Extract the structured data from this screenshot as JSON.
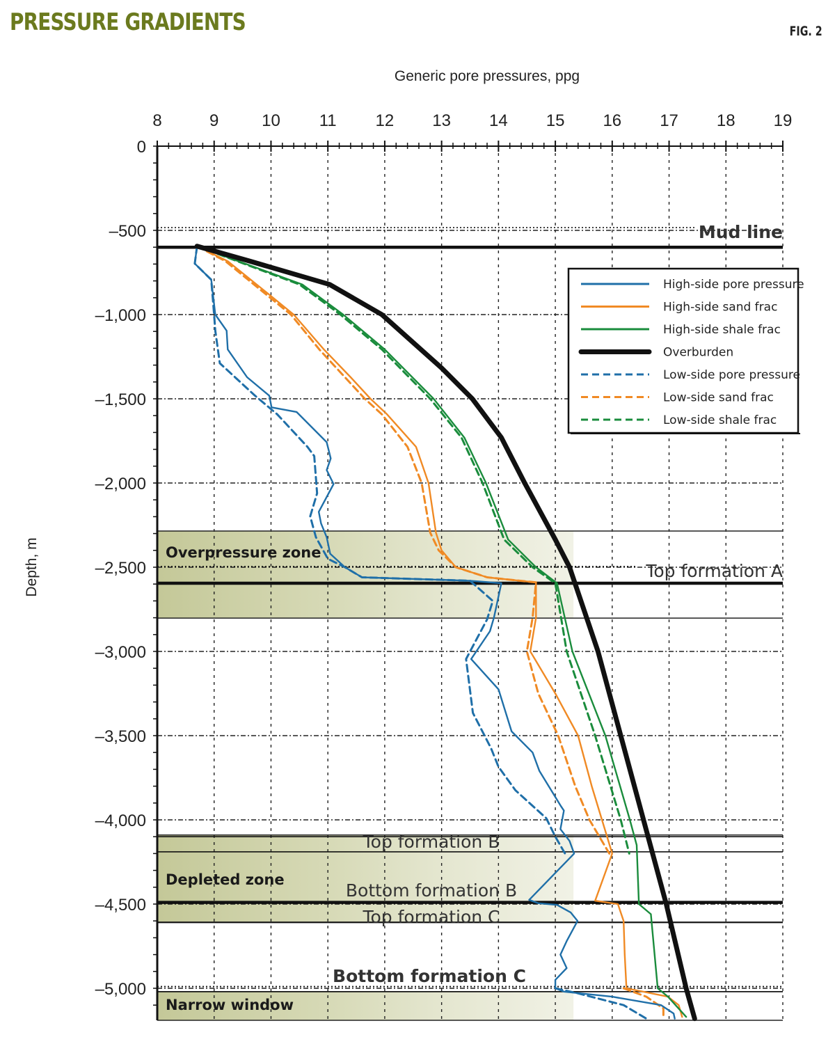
{
  "title": "PRESSURE GRADIENTS",
  "fig_label": "FIG. 2",
  "chart_data": {
    "type": "line",
    "title": "PRESSURE GRADIENTS",
    "xlabel": "Generic pore pressures, ppg",
    "ylabel": "Depth, m",
    "xlim": [
      8,
      19
    ],
    "ylim": [
      -5190,
      0
    ],
    "x_axis_position": "top",
    "grid": true,
    "legend_position": "top-right",
    "xticks": [
      "8",
      "9",
      "10",
      "11",
      "12",
      "13",
      "14",
      "15",
      "16",
      "17",
      "18",
      "19"
    ],
    "yticks": [
      {
        "value": 0,
        "label": "0"
      },
      {
        "value": -500,
        "label": "–500"
      },
      {
        "value": -1000,
        "label": "–1,000"
      },
      {
        "value": -1500,
        "label": "–1,500"
      },
      {
        "value": -2000,
        "label": "–2,000"
      },
      {
        "value": -2500,
        "label": "–2,500"
      },
      {
        "value": -3000,
        "label": "–3,000"
      },
      {
        "value": -3500,
        "label": "–3,500"
      },
      {
        "value": -4000,
        "label": "–4,000"
      },
      {
        "value": -4500,
        "label": "–4,500"
      },
      {
        "value": -5000,
        "label": "–5,000"
      }
    ],
    "series": [
      {
        "name": "High-side pore pressure",
        "color": "#1f6fa8",
        "style": "solid",
        "points": [
          [
            8.7,
            -594
          ],
          [
            8.66,
            -697
          ],
          [
            8.95,
            -793
          ],
          [
            9.02,
            -1000
          ],
          [
            9.22,
            -1096
          ],
          [
            9.24,
            -1207
          ],
          [
            9.58,
            -1372
          ],
          [
            9.97,
            -1482
          ],
          [
            10.01,
            -1551
          ],
          [
            10.45,
            -1578
          ],
          [
            10.98,
            -1758
          ],
          [
            11.05,
            -1854
          ],
          [
            10.98,
            -1923
          ],
          [
            11.1,
            -2006
          ],
          [
            10.84,
            -2171
          ],
          [
            10.88,
            -2240
          ],
          [
            10.98,
            -2322
          ],
          [
            11.04,
            -2420
          ],
          [
            11.3,
            -2500
          ],
          [
            11.6,
            -2560
          ],
          [
            13.5,
            -2580
          ],
          [
            14.05,
            -2595
          ],
          [
            13.92,
            -2800
          ],
          [
            13.85,
            -2880
          ],
          [
            13.52,
            -3045
          ],
          [
            14.0,
            -3225
          ],
          [
            14.23,
            -3475
          ],
          [
            14.6,
            -3600
          ],
          [
            14.72,
            -3710
          ],
          [
            15.1,
            -3920
          ],
          [
            15.15,
            -3945
          ],
          [
            15.09,
            -4055
          ],
          [
            15.25,
            -4125
          ],
          [
            15.33,
            -4200
          ],
          [
            14.9,
            -4350
          ],
          [
            14.54,
            -4475
          ],
          [
            14.7,
            -4495
          ],
          [
            15.03,
            -4505
          ],
          [
            15.27,
            -4550
          ],
          [
            15.39,
            -4600
          ],
          [
            15.2,
            -4720
          ],
          [
            15.09,
            -4800
          ],
          [
            15.2,
            -4880
          ],
          [
            15.0,
            -4950
          ],
          [
            15.0,
            -5000
          ],
          [
            15.15,
            -5020
          ],
          [
            16.0,
            -5050
          ],
          [
            16.86,
            -5100
          ],
          [
            17.08,
            -5150
          ],
          [
            17.1,
            -5180
          ]
        ]
      },
      {
        "name": "High-side sand frac",
        "color": "#f08a24",
        "style": "solid",
        "points": [
          [
            8.7,
            -594
          ],
          [
            9.24,
            -683
          ],
          [
            10.0,
            -890
          ],
          [
            10.4,
            -1000
          ],
          [
            10.93,
            -1207
          ],
          [
            11.4,
            -1372
          ],
          [
            11.75,
            -1500
          ],
          [
            12.04,
            -1592
          ],
          [
            12.55,
            -1785
          ],
          [
            12.77,
            -2000
          ],
          [
            12.9,
            -2295
          ],
          [
            13.0,
            -2400
          ],
          [
            13.25,
            -2500
          ],
          [
            13.8,
            -2560
          ],
          [
            14.66,
            -2590
          ],
          [
            14.66,
            -2800
          ],
          [
            14.56,
            -3000
          ],
          [
            15.0,
            -3250
          ],
          [
            15.4,
            -3500
          ],
          [
            15.64,
            -3800
          ],
          [
            15.82,
            -4000
          ],
          [
            16.0,
            -4200
          ],
          [
            15.7,
            -4480
          ],
          [
            16.1,
            -4500
          ],
          [
            16.2,
            -4600
          ],
          [
            16.22,
            -4800
          ],
          [
            16.25,
            -5000
          ],
          [
            16.98,
            -5050
          ],
          [
            17.17,
            -5100
          ],
          [
            17.23,
            -5170
          ]
        ]
      },
      {
        "name": "High-side shale frac",
        "color": "#1a8c3c",
        "style": "solid",
        "points": [
          [
            8.7,
            -594
          ],
          [
            10.55,
            -821
          ],
          [
            11.27,
            -1000
          ],
          [
            12.0,
            -1207
          ],
          [
            12.86,
            -1500
          ],
          [
            13.4,
            -1730
          ],
          [
            13.78,
            -2000
          ],
          [
            14.17,
            -2336
          ],
          [
            14.66,
            -2500
          ],
          [
            15.03,
            -2595
          ],
          [
            15.3,
            -3000
          ],
          [
            15.88,
            -3500
          ],
          [
            16.31,
            -4000
          ],
          [
            16.43,
            -4150
          ],
          [
            16.47,
            -4500
          ],
          [
            16.68,
            -4560
          ],
          [
            16.8,
            -5000
          ],
          [
            16.98,
            -5050
          ],
          [
            17.3,
            -5170
          ]
        ]
      },
      {
        "name": "Overburden",
        "color": "#111111",
        "style": "thick",
        "points": [
          [
            8.7,
            -594
          ],
          [
            9.63,
            -683
          ],
          [
            11.03,
            -821
          ],
          [
            11.95,
            -1000
          ],
          [
            13.0,
            -1317
          ],
          [
            13.54,
            -1500
          ],
          [
            14.05,
            -1730
          ],
          [
            14.46,
            -2000
          ],
          [
            15.0,
            -2336
          ],
          [
            15.25,
            -2500
          ],
          [
            15.35,
            -2600
          ],
          [
            15.75,
            -3000
          ],
          [
            16.15,
            -3500
          ],
          [
            16.55,
            -4000
          ],
          [
            16.95,
            -4500
          ],
          [
            17.3,
            -5000
          ],
          [
            17.45,
            -5180
          ]
        ]
      },
      {
        "name": "Low-side pore pressure",
        "color": "#1f6fa8",
        "style": "dashed",
        "points": [
          [
            8.7,
            -594
          ],
          [
            8.66,
            -697
          ],
          [
            8.95,
            -793
          ],
          [
            9.0,
            -1000
          ],
          [
            9.02,
            -1096
          ],
          [
            9.1,
            -1289
          ],
          [
            9.72,
            -1482
          ],
          [
            10.11,
            -1592
          ],
          [
            10.64,
            -1785
          ],
          [
            10.76,
            -1840
          ],
          [
            10.81,
            -2061
          ],
          [
            10.69,
            -2198
          ],
          [
            10.79,
            -2322
          ],
          [
            11.0,
            -2450
          ],
          [
            11.3,
            -2500
          ],
          [
            11.6,
            -2560
          ],
          [
            13.5,
            -2580
          ],
          [
            13.9,
            -2700
          ],
          [
            13.8,
            -2810
          ],
          [
            13.43,
            -3045
          ],
          [
            13.55,
            -3365
          ],
          [
            13.87,
            -3575
          ],
          [
            14.0,
            -3685
          ],
          [
            14.3,
            -3825
          ],
          [
            14.84,
            -3990
          ],
          [
            15.0,
            -4100
          ],
          [
            15.17,
            -4200
          ]
        ]
      },
      {
        "name": "Low-side sand frac",
        "color": "#f08a24",
        "style": "dashed",
        "points": [
          [
            8.7,
            -594
          ],
          [
            9.2,
            -683
          ],
          [
            9.95,
            -890
          ],
          [
            10.35,
            -1000
          ],
          [
            10.85,
            -1207
          ],
          [
            11.3,
            -1372
          ],
          [
            11.65,
            -1500
          ],
          [
            11.95,
            -1592
          ],
          [
            12.4,
            -1785
          ],
          [
            12.65,
            -2000
          ],
          [
            12.8,
            -2295
          ],
          [
            12.95,
            -2400
          ],
          [
            13.25,
            -2500
          ],
          [
            13.8,
            -2560
          ],
          [
            14.66,
            -2590
          ],
          [
            14.6,
            -2800
          ],
          [
            14.5,
            -3000
          ],
          [
            14.7,
            -3250
          ],
          [
            15.05,
            -3500
          ],
          [
            15.35,
            -3800
          ],
          [
            15.6,
            -4000
          ],
          [
            15.95,
            -4200
          ]
        ]
      },
      {
        "name": "Low-side shale frac",
        "color": "#1a8c3c",
        "style": "dashed",
        "points": [
          [
            8.7,
            -594
          ],
          [
            10.5,
            -821
          ],
          [
            11.22,
            -1000
          ],
          [
            11.95,
            -1207
          ],
          [
            12.8,
            -1500
          ],
          [
            13.35,
            -1730
          ],
          [
            13.72,
            -2000
          ],
          [
            14.1,
            -2336
          ],
          [
            14.6,
            -2500
          ],
          [
            15.0,
            -2595
          ],
          [
            15.2,
            -3000
          ],
          [
            15.7,
            -3500
          ],
          [
            16.15,
            -4000
          ],
          [
            16.3,
            -4200
          ]
        ]
      },
      {
        "name": "Low-side pore pressure (bottom)",
        "legend": false,
        "color": "#1f6fa8",
        "style": "dashed",
        "points": [
          [
            15.0,
            -5000
          ],
          [
            15.4,
            -5030
          ],
          [
            16.2,
            -5100
          ],
          [
            16.6,
            -5180
          ]
        ]
      },
      {
        "name": "Low-side sand frac (bottom)",
        "legend": false,
        "color": "#f08a24",
        "style": "dashed",
        "points": [
          [
            16.2,
            -5000
          ],
          [
            16.6,
            -5050
          ],
          [
            16.9,
            -5120
          ],
          [
            16.9,
            -5170
          ]
        ]
      }
    ],
    "zones": [
      {
        "label": "Overpressure zone",
        "top": -2285,
        "bottom": -2802
      },
      {
        "label": "Depleted zone",
        "top": -4090,
        "bottom": -4607
      },
      {
        "label": "Narrow window",
        "top": -5020,
        "bottom": -5190
      }
    ],
    "horizon_lines": [
      {
        "label": "Mud line",
        "depth": -600,
        "style": "thick"
      },
      {
        "label": "Top formation A",
        "depth": -2496,
        "style": "dotted"
      },
      {
        "label": "",
        "depth": -2595,
        "style": "thick"
      },
      {
        "label": "Top formation B",
        "depth": -4100,
        "style": "thin"
      },
      {
        "label": "",
        "depth": -4190,
        "style": "thin"
      },
      {
        "label": "Bottom formation B",
        "depth": -4490,
        "style": "thick"
      },
      {
        "label": "Top formation C",
        "depth": -4610,
        "style": "thin"
      },
      {
        "label": "Bottom formation C",
        "depth": -4990,
        "style": "dotted"
      },
      {
        "label": "",
        "depth": -5020,
        "style": "thin"
      }
    ]
  }
}
